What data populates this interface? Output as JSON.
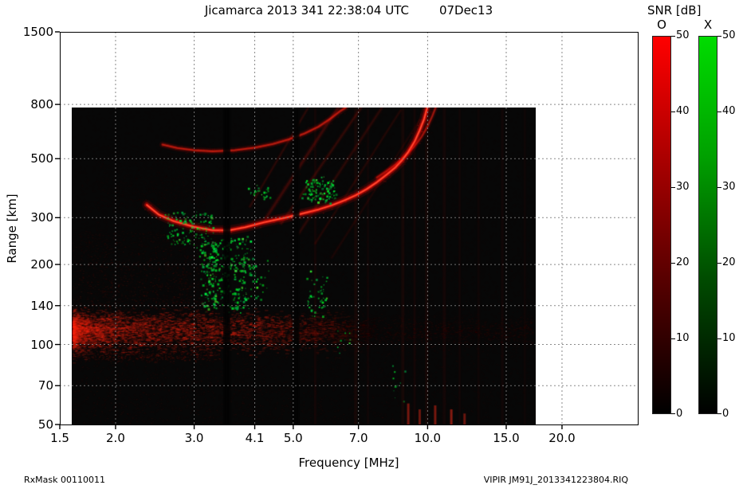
{
  "header": {
    "title": "Jicamarca 2013 341 22:38:04 UTC",
    "date": "07Dec13"
  },
  "footer": {
    "left": "RxMask 00110011",
    "right": "VIPIR  JM91J_2013341223804.RIQ"
  },
  "colorbars": {
    "title": "SNR [dB]",
    "ticks": [
      0,
      10,
      20,
      30,
      40,
      50
    ],
    "bars": [
      {
        "label": "O",
        "colors": [
          "#000000",
          "#560000",
          "#ab0000",
          "#ff0000"
        ]
      },
      {
        "label": "X",
        "colors": [
          "#000000",
          "#004a00",
          "#00a000",
          "#00dc00"
        ]
      }
    ]
  },
  "chart_data": {
    "type": "heatmap",
    "title": "Jicamarca ionogram: echo SNR vs frequency and virtual range",
    "snr_db_range": [
      0,
      50
    ],
    "modes": [
      "O",
      "X"
    ],
    "data_extent": {
      "f_mhz": [
        1.6,
        17.5
      ],
      "range_km": [
        50,
        780
      ]
    },
    "x": {
      "label": "Frequency [MHz]",
      "scale": "log",
      "ticks": [
        1.5,
        2,
        3,
        4.1,
        5,
        7,
        10,
        15,
        20
      ],
      "tick_labels": [
        "1.5",
        "2.0",
        "3.0",
        "4.1",
        "5.0",
        "7.0",
        "10.0",
        "15.0",
        "20.0"
      ]
    },
    "y": {
      "label": "Range [km]",
      "scale": "log",
      "ticks": [
        1500,
        800,
        500,
        300,
        200,
        140,
        100,
        70,
        50
      ],
      "tick_labels": [
        "1500",
        "800",
        "500",
        "300",
        "200",
        "140",
        "100",
        "70",
        "50"
      ]
    },
    "o_mode_trace": [
      [
        2.35,
        335
      ],
      [
        2.5,
        308
      ],
      [
        2.7,
        291
      ],
      [
        3.0,
        277
      ],
      [
        3.3,
        269
      ],
      [
        3.6,
        269
      ],
      [
        3.9,
        276
      ],
      [
        4.3,
        288
      ],
      [
        4.8,
        300
      ],
      [
        5.2,
        310
      ],
      [
        5.7,
        322
      ],
      [
        6.1,
        334
      ],
      [
        6.5,
        348
      ],
      [
        6.9,
        364
      ],
      [
        7.3,
        384
      ],
      [
        7.7,
        408
      ],
      [
        8.1,
        436
      ],
      [
        8.45,
        462
      ],
      [
        8.75,
        492
      ],
      [
        9.05,
        530
      ],
      [
        9.35,
        580
      ],
      [
        9.6,
        640
      ],
      [
        9.82,
        705
      ],
      [
        9.98,
        778
      ]
    ],
    "second_hop_trace": [
      [
        2.55,
        565
      ],
      [
        2.75,
        548
      ],
      [
        3.0,
        538
      ],
      [
        3.3,
        533
      ],
      [
        3.7,
        538
      ],
      [
        4.1,
        550
      ],
      [
        4.5,
        568
      ],
      [
        4.9,
        592
      ],
      [
        5.3,
        622
      ],
      [
        5.7,
        660
      ],
      [
        6.05,
        706
      ],
      [
        6.35,
        752
      ],
      [
        6.55,
        778
      ]
    ],
    "x_mode_asymptote": [
      [
        7.7,
        425
      ],
      [
        8.1,
        450
      ],
      [
        8.5,
        478
      ],
      [
        8.9,
        512
      ],
      [
        9.3,
        552
      ],
      [
        9.7,
        605
      ],
      [
        10.0,
        662
      ],
      [
        10.25,
        725
      ],
      [
        10.42,
        778
      ]
    ],
    "oblique_echoes": [
      {
        "from": [
          4.0,
          330
        ],
        "to": [
          5.4,
          778
        ],
        "alpha": 0.1,
        "w": 2
      },
      {
        "from": [
          4.35,
          300
        ],
        "to": [
          6.3,
          778
        ],
        "alpha": 0.15,
        "w": 3
      },
      {
        "from": [
          4.7,
          285
        ],
        "to": [
          7.1,
          778
        ],
        "alpha": 0.12,
        "w": 2.5
      },
      {
        "from": [
          5.15,
          262
        ],
        "to": [
          7.9,
          778
        ],
        "alpha": 0.1,
        "w": 2.5
      },
      {
        "from": [
          5.6,
          240
        ],
        "to": [
          8.7,
          760
        ],
        "alpha": 0.08,
        "w": 2
      },
      {
        "from": [
          6.1,
          212
        ],
        "to": [
          9.6,
          700
        ],
        "alpha": 0.06,
        "w": 2
      }
    ],
    "x_mode_clusters": [
      {
        "f": [
          2.6,
          3.3
        ],
        "range": [
          233,
          317
        ],
        "n": 130,
        "s": 2
      },
      {
        "f": [
          3.08,
          3.97
        ],
        "range": [
          134,
          249
        ],
        "n": 330,
        "s": 2.4
      },
      {
        "f": [
          3.95,
          4.35
        ],
        "range": [
          150,
          210
        ],
        "n": 28,
        "s": 2
      },
      {
        "f": [
          4.0,
          4.4
        ],
        "range": [
          355,
          400
        ],
        "n": 26,
        "s": 2
      },
      {
        "f": [
          5.25,
          6.2
        ],
        "range": [
          345,
          422
        ],
        "n": 120,
        "s": 2.2
      },
      {
        "f": [
          5.3,
          5.9
        ],
        "range": [
          128,
          190
        ],
        "n": 48,
        "s": 2
      },
      {
        "f": [
          6.2,
          6.7
        ],
        "range": [
          92,
          115
        ],
        "n": 9,
        "s": 1.6
      },
      {
        "f": [
          8.3,
          8.9
        ],
        "range": [
          60,
          82
        ],
        "n": 10,
        "s": 1.8
      }
    ],
    "diffuse_clouds": [
      {
        "f": [
          1.6,
          3.4
        ],
        "range": [
          88,
          265
        ],
        "n": 2600,
        "a": 0.16,
        "bias": 1.5
      },
      {
        "f": [
          1.8,
          3.2
        ],
        "range": [
          330,
          560
        ],
        "n": 900,
        "a": 0.05,
        "bias": 1
      }
    ],
    "e_region_band": {
      "f": [
        1.6,
        4.35
      ],
      "fade_to_f": 7.6,
      "range_center": 113,
      "range_sigma": 9
    },
    "rfi_notches": [
      {
        "f": 3.55,
        "w": 9
      },
      {
        "f": 5.08,
        "w": 8
      }
    ],
    "interference_stripes": [
      {
        "f": 5.6,
        "w": 3,
        "a": 0.05
      },
      {
        "f": 6.9,
        "w": 4,
        "a": 0.06
      },
      {
        "f": 7.35,
        "w": 3,
        "a": 0.04
      },
      {
        "f": 8.8,
        "w": 4,
        "a": 0.06
      },
      {
        "f": 9.35,
        "w": 3,
        "a": 0.05
      },
      {
        "f": 9.95,
        "w": 4,
        "a": 0.06
      },
      {
        "f": 10.9,
        "w": 4,
        "a": 0.05
      },
      {
        "f": 11.8,
        "w": 3,
        "a": 0.04
      },
      {
        "f": 13.0,
        "w": 3,
        "a": 0.035
      },
      {
        "f": 14.7,
        "w": 3,
        "a": 0.045
      },
      {
        "f": 16.5,
        "w": 3,
        "a": 0.03
      }
    ],
    "bottom_marks": [
      {
        "f": 9.05,
        "range": [
          50,
          60
        ],
        "a": 0.45
      },
      {
        "f": 9.6,
        "range": [
          50,
          57
        ],
        "a": 0.4
      },
      {
        "f": 10.4,
        "range": [
          50,
          59
        ],
        "a": 0.45
      },
      {
        "f": 11.3,
        "range": [
          50,
          57
        ],
        "a": 0.5
      },
      {
        "f": 12.1,
        "range": [
          50,
          55
        ],
        "a": 0.4
      }
    ]
  }
}
